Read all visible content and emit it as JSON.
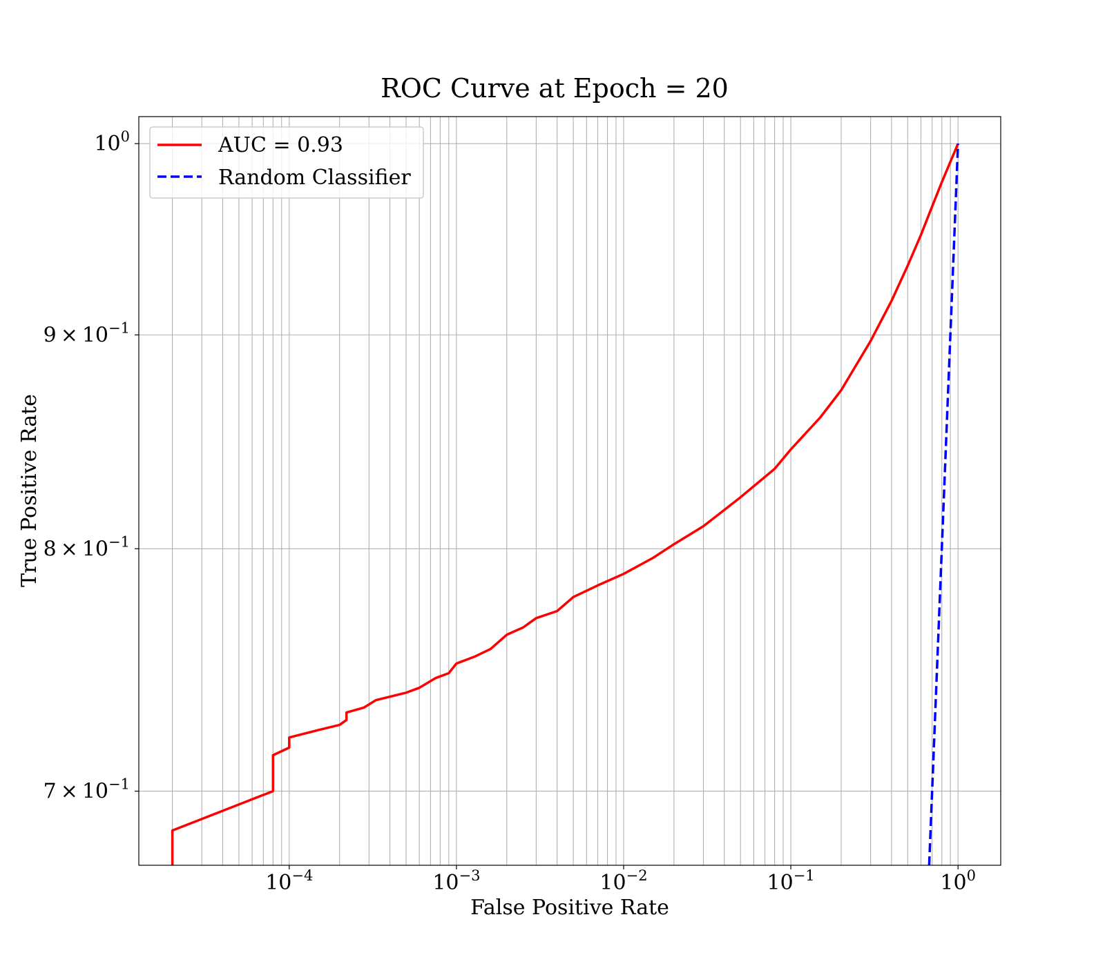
{
  "chart_data": {
    "type": "line",
    "title": "ROC Curve at Epoch = 20",
    "xlabel": "False Positive Rate",
    "ylabel": "True Positive Rate",
    "xscale": "log",
    "yscale": "log",
    "xlim": [
      1.26e-05,
      1.8
    ],
    "ylim": [
      0.672,
      1.015
    ],
    "grid": true,
    "legend_position": "top-left",
    "x_ticks": [
      {
        "base": "10",
        "exp": "−4",
        "value": 0.0001
      },
      {
        "base": "10",
        "exp": "−3",
        "value": 0.001
      },
      {
        "base": "10",
        "exp": "−2",
        "value": 0.01
      },
      {
        "base": "10",
        "exp": "−1",
        "value": 0.1
      },
      {
        "base": "10",
        "exp": "0",
        "value": 1
      }
    ],
    "y_ticks": [
      {
        "mantissa": "",
        "base": "10",
        "exp": "0",
        "value": 1.0
      },
      {
        "mantissa": "9",
        "base": "10",
        "exp": "−1",
        "value": 0.9
      },
      {
        "mantissa": "8",
        "base": "10",
        "exp": "−1",
        "value": 0.8
      },
      {
        "mantissa": "7",
        "base": "10",
        "exp": "−1",
        "value": 0.7
      }
    ],
    "series": [
      {
        "name": "AUC = 0.93",
        "color": "#ff0000",
        "style": "solid",
        "points": [
          [
            2e-05,
            0.672
          ],
          [
            2e-05,
            0.685
          ],
          [
            8e-05,
            0.7
          ],
          [
            8e-05,
            0.714
          ],
          [
            0.0001,
            0.717
          ],
          [
            0.0001,
            0.721
          ],
          [
            0.00015,
            0.724
          ],
          [
            0.0002,
            0.726
          ],
          [
            0.00022,
            0.728
          ],
          [
            0.00022,
            0.731
          ],
          [
            0.00028,
            0.733
          ],
          [
            0.00033,
            0.736
          ],
          [
            0.0005,
            0.739
          ],
          [
            0.0006,
            0.741
          ],
          [
            0.00075,
            0.745
          ],
          [
            0.0009,
            0.747
          ],
          [
            0.001,
            0.751
          ],
          [
            0.0013,
            0.754
          ],
          [
            0.0016,
            0.757
          ],
          [
            0.002,
            0.763
          ],
          [
            0.0025,
            0.766
          ],
          [
            0.003,
            0.77
          ],
          [
            0.004,
            0.773
          ],
          [
            0.005,
            0.779
          ],
          [
            0.007,
            0.784
          ],
          [
            0.01,
            0.789
          ],
          [
            0.015,
            0.796
          ],
          [
            0.02,
            0.802
          ],
          [
            0.03,
            0.81
          ],
          [
            0.05,
            0.823
          ],
          [
            0.08,
            0.836
          ],
          [
            0.1,
            0.845
          ],
          [
            0.15,
            0.86
          ],
          [
            0.2,
            0.873
          ],
          [
            0.3,
            0.897
          ],
          [
            0.4,
            0.917
          ],
          [
            0.5,
            0.935
          ],
          [
            0.6,
            0.951
          ],
          [
            0.7,
            0.966
          ],
          [
            0.8,
            0.979
          ],
          [
            0.9,
            0.99
          ],
          [
            1.0,
            1.0
          ]
        ]
      },
      {
        "name": "Random Classifier",
        "color": "#0000ff",
        "style": "dashed",
        "points": [
          [
            0.672,
            0.672
          ],
          [
            0.8,
            0.8
          ],
          [
            0.9,
            0.9
          ],
          [
            1.0,
            1.0
          ]
        ]
      }
    ]
  }
}
